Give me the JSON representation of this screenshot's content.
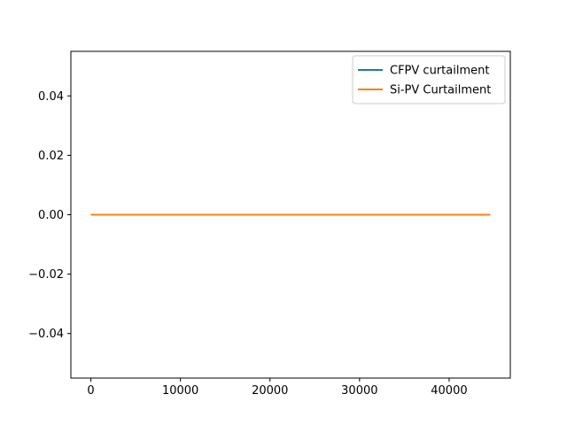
{
  "chart_data": {
    "type": "line",
    "title": "",
    "xlabel": "",
    "ylabel": "",
    "xlim": [
      -2230,
      46830
    ],
    "ylim": [
      -0.055,
      0.055
    ],
    "xticks": [
      0,
      10000,
      20000,
      30000,
      40000
    ],
    "xtick_labels": [
      "0",
      "10000",
      "20000",
      "30000",
      "40000"
    ],
    "yticks": [
      -0.04,
      -0.02,
      0.0,
      0.02,
      0.04
    ],
    "ytick_labels": [
      "−0.04",
      "−0.02",
      "0.00",
      "0.02",
      "0.04"
    ],
    "grid": false,
    "legend_position": "top-right",
    "series": [
      {
        "name": "CFPV curtailment",
        "color": "#1f77b4",
        "x": [
          0,
          44600
        ],
        "y": [
          0,
          0
        ]
      },
      {
        "name": "Si-PV Curtailment",
        "color": "#ff7f0e",
        "x": [
          0,
          44600
        ],
        "y": [
          0,
          0
        ]
      }
    ]
  }
}
